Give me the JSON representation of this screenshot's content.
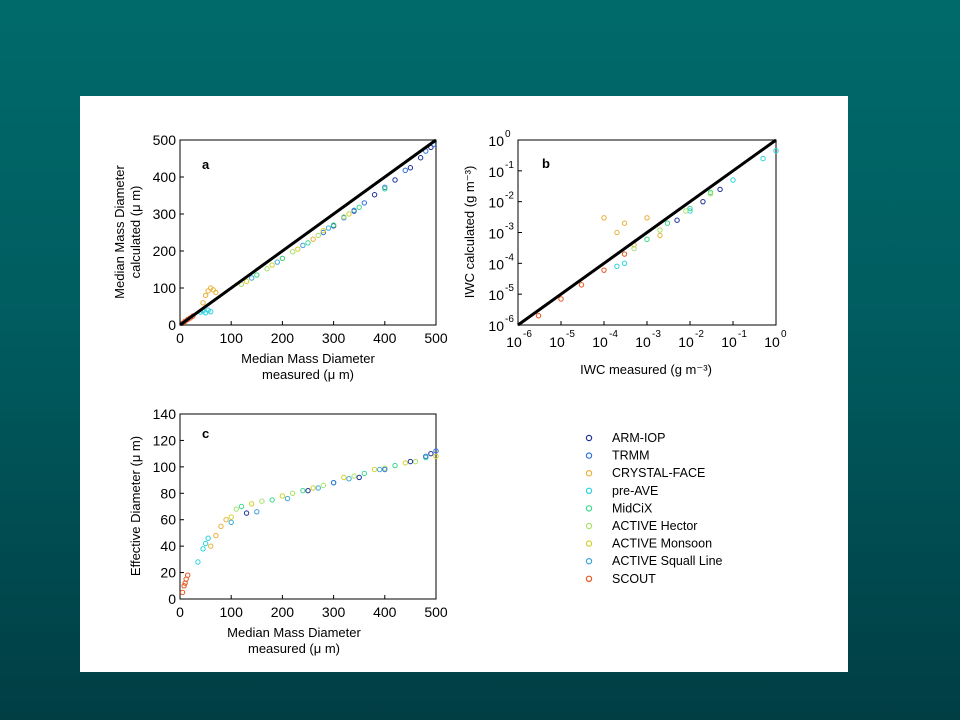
{
  "chart_data": [
    {
      "panel": "a",
      "type": "scatter",
      "xlabel_line1": "Median Mass Diameter",
      "xlabel_line2": "measured (μ m)",
      "ylabel_line1": "Median Mass Diameter",
      "ylabel_line2": "calculated (μ m)",
      "xlim": [
        0,
        500
      ],
      "ylim": [
        0,
        500
      ],
      "xticks": [
        0,
        100,
        200,
        300,
        400,
        500
      ],
      "yticks": [
        0,
        100,
        200,
        300,
        400,
        500
      ],
      "reference_line": [
        [
          0,
          0
        ],
        [
          500,
          500
        ]
      ],
      "series": [
        {
          "name": "ARM-IOP",
          "points": [
            [
              300,
              268
            ],
            [
              340,
              308
            ],
            [
              380,
              352
            ],
            [
              420,
              392
            ],
            [
              450,
              425
            ],
            [
              470,
              452
            ],
            [
              490,
              480
            ]
          ]
        },
        {
          "name": "TRMM",
          "points": [
            [
              280,
              250
            ],
            [
              320,
              290
            ],
            [
              360,
              330
            ],
            [
              400,
              372
            ],
            [
              440,
              418
            ],
            [
              480,
              470
            ],
            [
              495,
              488
            ]
          ]
        },
        {
          "name": "CRYSTAL-FACE",
          "points": [
            [
              45,
              60
            ],
            [
              50,
              80
            ],
            [
              55,
              92
            ],
            [
              60,
              100
            ],
            [
              65,
              95
            ],
            [
              70,
              88
            ],
            [
              200,
              180
            ],
            [
              260,
              232
            ]
          ]
        },
        {
          "name": "pre-AVE",
          "points": [
            [
              40,
              35
            ],
            [
              45,
              38
            ],
            [
              50,
              33
            ],
            [
              55,
              40
            ],
            [
              60,
              36
            ]
          ]
        },
        {
          "name": "MidCiX",
          "points": [
            [
              150,
              135
            ],
            [
              200,
              180
            ],
            [
              250,
              222
            ],
            [
              300,
              270
            ],
            [
              350,
              318
            ],
            [
              400,
              368
            ]
          ]
        },
        {
          "name": "ACTIVE Hector",
          "points": [
            [
              120,
              110
            ],
            [
              170,
              152
            ],
            [
              220,
              198
            ],
            [
              270,
              242
            ],
            [
              320,
              292
            ]
          ]
        },
        {
          "name": "ACTIVE Monsoon",
          "points": [
            [
              130,
              118
            ],
            [
              180,
              162
            ],
            [
              230,
              205
            ],
            [
              280,
              255
            ],
            [
              330,
              300
            ]
          ]
        },
        {
          "name": "ACTIVE Squall Line",
          "points": [
            [
              140,
              127
            ],
            [
              190,
              170
            ],
            [
              240,
              215
            ],
            [
              290,
              262
            ],
            [
              340,
              310
            ]
          ]
        },
        {
          "name": "SCOUT",
          "points": [
            [
              5,
              5
            ],
            [
              10,
              10
            ],
            [
              15,
              15
            ],
            [
              20,
              19
            ],
            [
              25,
              24
            ]
          ]
        }
      ]
    },
    {
      "panel": "b",
      "type": "scatter",
      "scale": "log",
      "xlabel": "IWC measured (g m⁻³)",
      "ylabel": "IWC calculated (g m⁻³)",
      "xlim": [
        1e-06,
        1
      ],
      "ylim": [
        1e-06,
        1
      ],
      "tick_exponents": [
        "-6",
        "-5",
        "-4",
        "-3",
        "-2",
        "-1",
        "0"
      ],
      "reference_line": [
        [
          1e-06,
          1e-06
        ],
        [
          1,
          1
        ]
      ],
      "series": [
        {
          "name": "SCOUT",
          "points": [
            [
              3e-06,
              2e-06
            ],
            [
              1e-05,
              7e-06
            ],
            [
              3e-05,
              2e-05
            ],
            [
              0.0001,
              6e-05
            ],
            [
              0.0003,
              0.0002
            ]
          ]
        },
        {
          "name": "CRYSTAL-FACE",
          "points": [
            [
              0.0001,
              0.003
            ],
            [
              0.0002,
              0.001
            ],
            [
              0.0003,
              0.002
            ],
            [
              0.0005,
              0.0004
            ],
            [
              0.001,
              0.003
            ],
            [
              0.002,
              0.0008
            ]
          ]
        },
        {
          "name": "pre-AVE",
          "points": [
            [
              0.0002,
              8e-05
            ],
            [
              0.0003,
              0.0001
            ],
            [
              0.01,
              0.005
            ],
            [
              0.1,
              0.05
            ],
            [
              0.5,
              0.25
            ],
            [
              1,
              0.45
            ]
          ]
        },
        {
          "name": "MidCiX",
          "points": [
            [
              0.001,
              0.0006
            ],
            [
              0.003,
              0.002
            ],
            [
              0.01,
              0.006
            ],
            [
              0.03,
              0.02
            ]
          ]
        },
        {
          "name": "ACTIVE Hector",
          "points": [
            [
              0.0005,
              0.0003
            ],
            [
              0.002,
              0.0012
            ],
            [
              0.008,
              0.005
            ],
            [
              0.03,
              0.018
            ]
          ]
        },
        {
          "name": "ARM-IOP",
          "points": [
            [
              0.005,
              0.0025
            ],
            [
              0.02,
              0.01
            ],
            [
              0.05,
              0.025
            ]
          ]
        }
      ]
    },
    {
      "panel": "c",
      "type": "scatter",
      "xlabel_line1": "Median Mass Diameter",
      "xlabel_line2": "measured (μ m)",
      "ylabel": "Effective Diameter (μ m)",
      "xlim": [
        0,
        500
      ],
      "ylim": [
        0,
        140
      ],
      "xticks": [
        0,
        100,
        200,
        300,
        400,
        500
      ],
      "yticks": [
        0,
        20,
        40,
        60,
        80,
        100,
        120,
        140
      ],
      "series": [
        {
          "name": "SCOUT",
          "points": [
            [
              5,
              5
            ],
            [
              8,
              10
            ],
            [
              10,
              12
            ],
            [
              12,
              15
            ],
            [
              15,
              18
            ]
          ]
        },
        {
          "name": "pre-AVE",
          "points": [
            [
              35,
              28
            ],
            [
              45,
              38
            ],
            [
              50,
              42
            ],
            [
              55,
              46
            ]
          ]
        },
        {
          "name": "CRYSTAL-FACE",
          "points": [
            [
              60,
              40
            ],
            [
              70,
              48
            ],
            [
              80,
              55
            ],
            [
              90,
              60
            ]
          ]
        },
        {
          "name": "ACTIVE Monsoon",
          "points": [
            [
              100,
              62
            ],
            [
              140,
              72
            ],
            [
              200,
              78
            ],
            [
              260,
              84
            ],
            [
              320,
              92
            ],
            [
              380,
              98
            ],
            [
              440,
              103
            ],
            [
              500,
              108
            ]
          ]
        },
        {
          "name": "ACTIVE Hector",
          "points": [
            [
              110,
              68
            ],
            [
              160,
              74
            ],
            [
              220,
              80
            ],
            [
              280,
              86
            ],
            [
              340,
              93
            ],
            [
              400,
              99
            ],
            [
              460,
              104
            ]
          ]
        },
        {
          "name": "MidCiX",
          "points": [
            [
              120,
              70
            ],
            [
              180,
              75
            ],
            [
              240,
              82
            ],
            [
              300,
              88
            ],
            [
              360,
              95
            ],
            [
              420,
              101
            ],
            [
              480,
              107
            ]
          ]
        },
        {
          "name": "ACTIVE Squall Line",
          "points": [
            [
              100,
              58
            ],
            [
              150,
              66
            ],
            [
              210,
              76
            ],
            [
              270,
              84
            ],
            [
              330,
              91
            ],
            [
              390,
              98
            ]
          ]
        },
        {
          "name": "ARM-IOP",
          "points": [
            [
              130,
              65
            ],
            [
              250,
              82
            ],
            [
              350,
              92
            ],
            [
              450,
              104
            ],
            [
              490,
              110
            ]
          ]
        },
        {
          "name": "TRMM",
          "points": [
            [
              300,
              88
            ],
            [
              400,
              98
            ],
            [
              480,
              108
            ],
            [
              500,
              112
            ]
          ]
        }
      ]
    }
  ],
  "legend": [
    {
      "name": "ARM-IOP",
      "color": "#1c2f9a"
    },
    {
      "name": "TRMM",
      "color": "#2f6fe0"
    },
    {
      "name": "CRYSTAL-FACE",
      "color": "#e8b13a"
    },
    {
      "name": "pre-AVE",
      "color": "#29d3e0"
    },
    {
      "name": "MidCiX",
      "color": "#3ad88a"
    },
    {
      "name": "ACTIVE Hector",
      "color": "#a7e26a"
    },
    {
      "name": "ACTIVE Monsoon",
      "color": "#d5cf2a"
    },
    {
      "name": "ACTIVE Squall Line",
      "color": "#3aa6d9"
    },
    {
      "name": "SCOUT",
      "color": "#e8561c"
    }
  ]
}
